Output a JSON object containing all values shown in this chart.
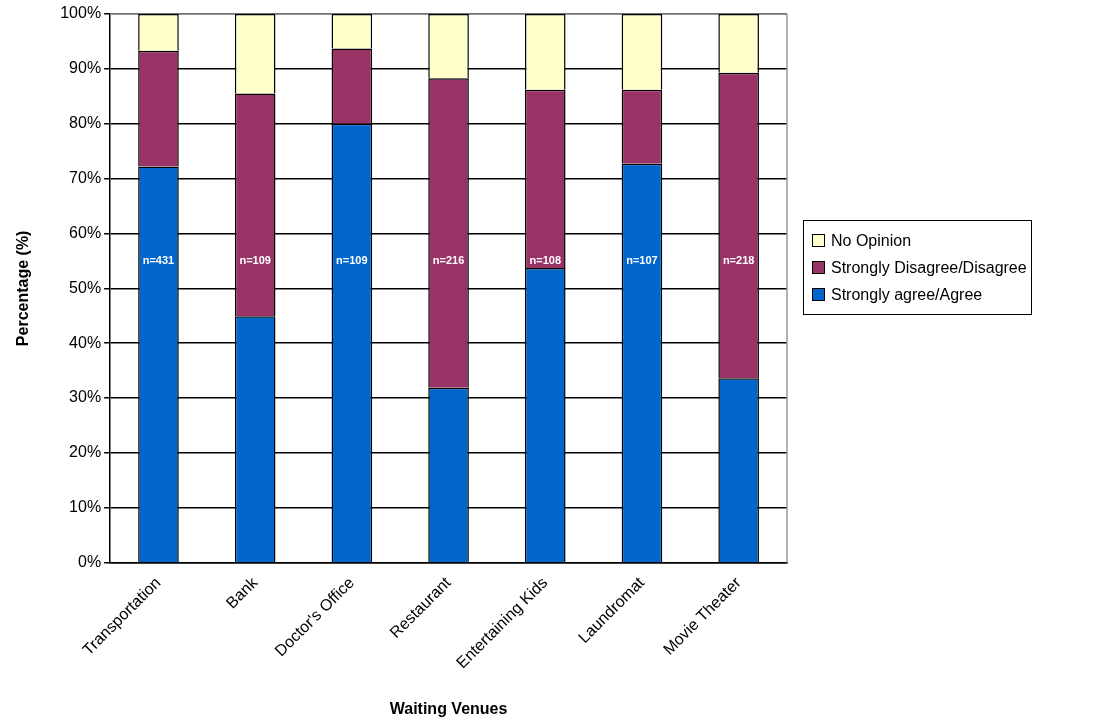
{
  "chart_data": {
    "type": "bar",
    "stacked": true,
    "xlabel": "Waiting Venues",
    "ylabel": "Percentage (%)",
    "categories": [
      "Transportation",
      "Bank",
      "Doctor's Office",
      "Restaurant",
      "Entertaining Kids",
      "Laundromat",
      "Movie Theater"
    ],
    "series": [
      {
        "name": "Strongly agree/Agree",
        "color": "#0066cc",
        "values": [
          72.2,
          44.9,
          80.0,
          31.9,
          53.7,
          72.7,
          33.6
        ]
      },
      {
        "name": "Strongly Disagree/Disagree",
        "color": "#993366",
        "values": [
          21.1,
          40.6,
          13.7,
          56.4,
          32.5,
          13.5,
          55.7
        ]
      },
      {
        "name": "No Opinion",
        "color": "#ffffcc",
        "values": [
          6.7,
          14.5,
          6.3,
          11.7,
          13.8,
          13.8,
          10.7
        ]
      }
    ],
    "ylim": [
      0,
      100
    ],
    "yticks": [
      {
        "value": 0,
        "label": "0%"
      },
      {
        "value": 10,
        "label": "10%"
      },
      {
        "value": 20,
        "label": "20%"
      },
      {
        "value": 30,
        "label": "30%"
      },
      {
        "value": 40,
        "label": "40%"
      },
      {
        "value": 50,
        "label": "50%"
      },
      {
        "value": 60,
        "label": "60%"
      },
      {
        "value": 70,
        "label": "70%"
      },
      {
        "value": 80,
        "label": "80%"
      },
      {
        "value": 90,
        "label": "90%"
      },
      {
        "value": 100,
        "label": "100%"
      }
    ],
    "grid": "y",
    "legend": "right",
    "annotations": [
      "n=431",
      "n=109",
      "n=109",
      "n=216",
      "n=108",
      "n=107",
      "n=218"
    ]
  }
}
